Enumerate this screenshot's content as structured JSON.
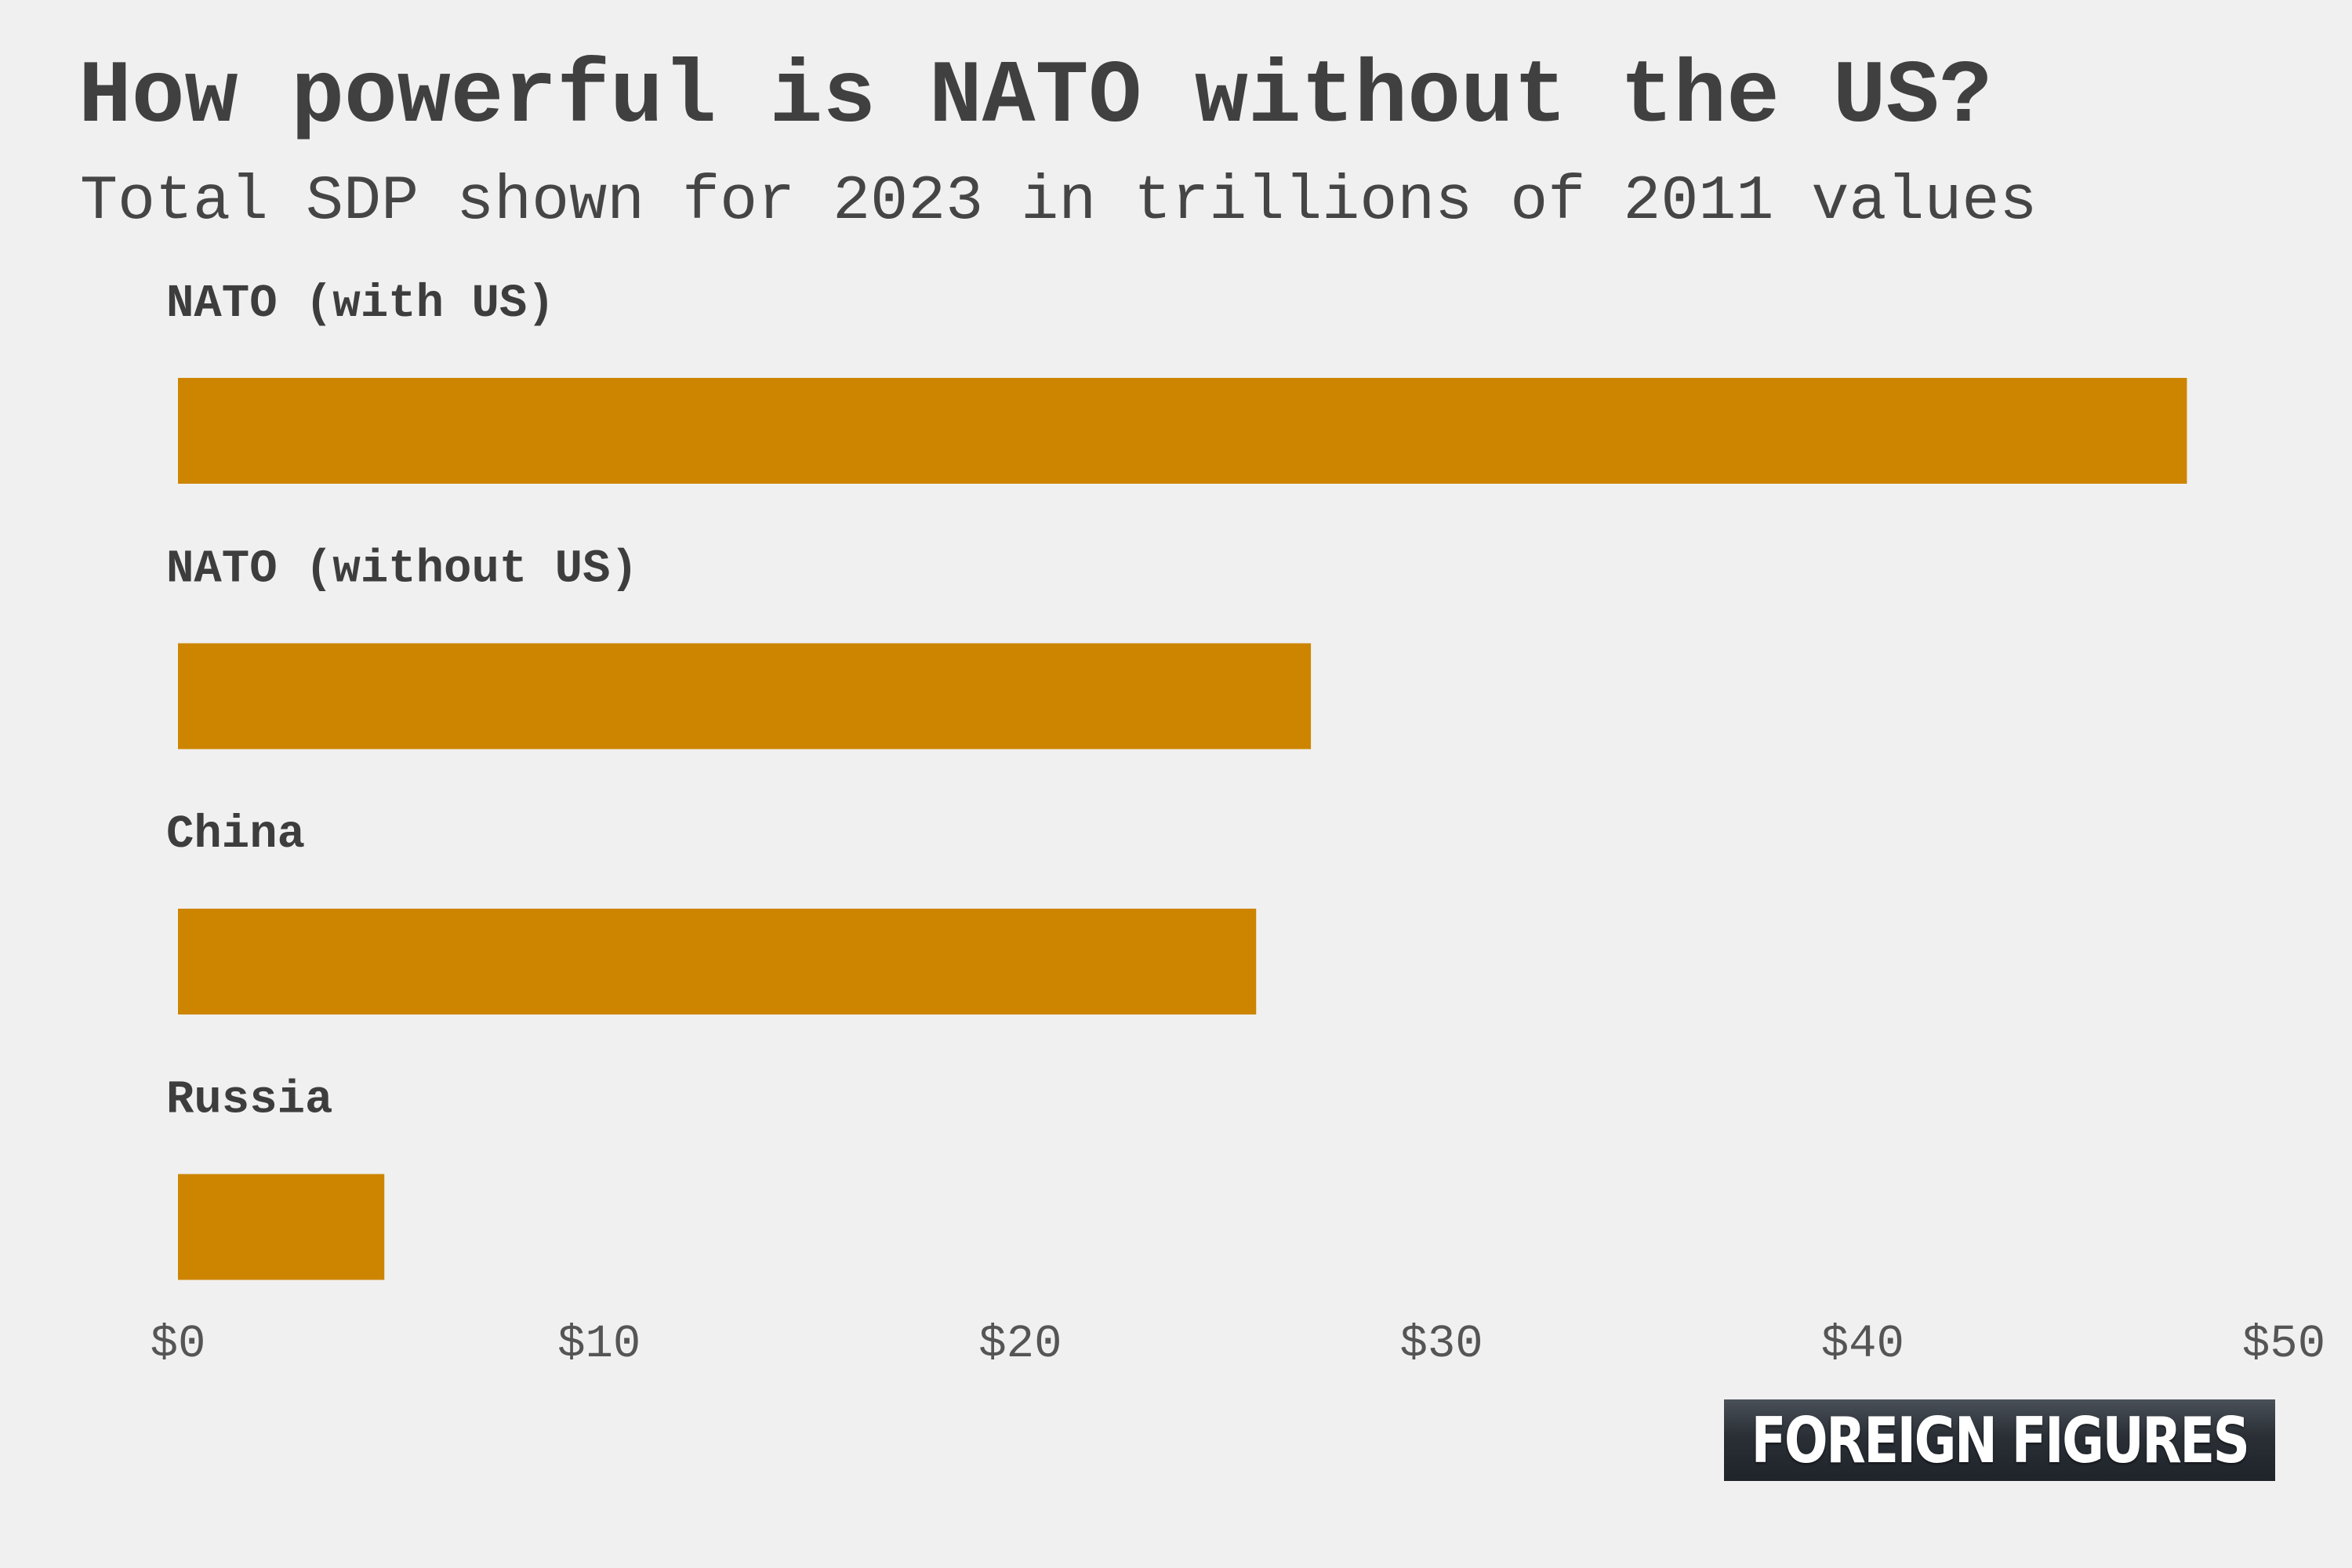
{
  "chart_data": {
    "type": "bar",
    "orientation": "horizontal",
    "title": "How powerful is NATO without the US?",
    "subtitle": "Total SDP shown for 2023 in trillions of 2011 values",
    "categories": [
      "NATO (with US)",
      "NATO (without US)",
      "China",
      "Russia"
    ],
    "values": [
      47.7,
      26.9,
      25.6,
      4.9
    ],
    "xlim": [
      0,
      50
    ],
    "xticks": [
      0,
      10,
      20,
      30,
      40,
      50
    ],
    "xtick_labels": [
      "$0",
      "$10",
      "$20",
      "$30",
      "$40",
      "$50"
    ],
    "xlabel": "",
    "ylabel": "",
    "grid": false,
    "colors": {
      "bar": "#cd8500",
      "background": "#f0f0f0",
      "text": "#404040"
    }
  },
  "logo": {
    "text": "FOREIGN FIGURES"
  }
}
